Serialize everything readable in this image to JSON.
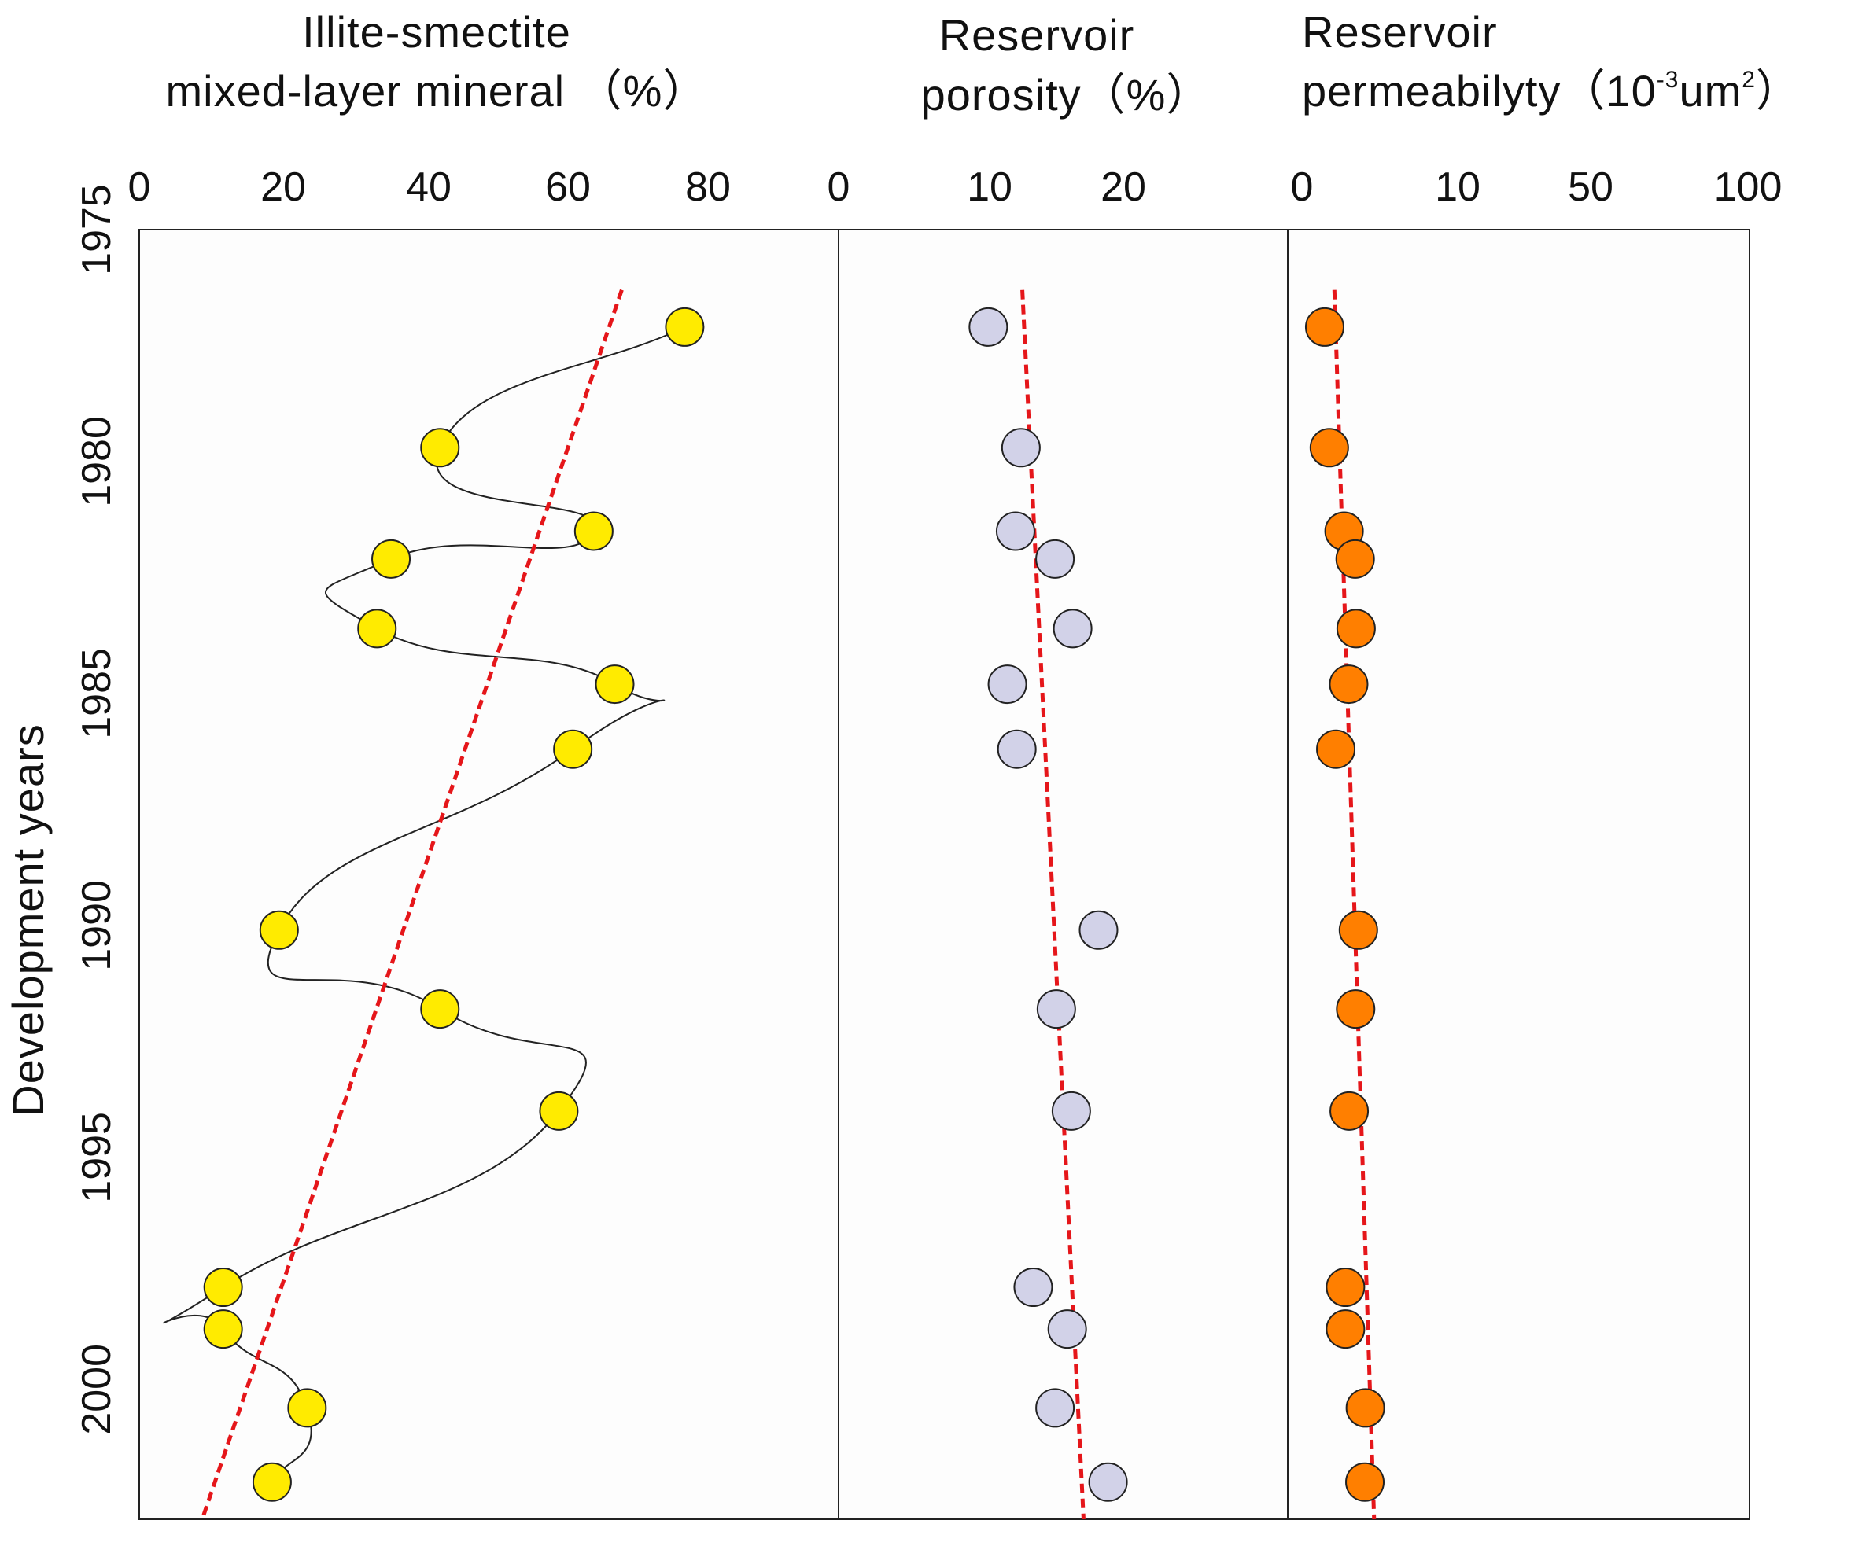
{
  "chart_data": {
    "type": "scatter",
    "y_axis": {
      "label": "Development years",
      "tick_labels": [
        "1975",
        "1980",
        "1985",
        "1990",
        "1995",
        "2000"
      ],
      "range": [
        1975,
        2002.8
      ],
      "inverted": true
    },
    "panels": [
      {
        "id": "illite",
        "title_lines": [
          "Illite-smectite",
          "mixed-layer mineral （%）"
        ],
        "x_tick_labels": [
          "0",
          "20",
          "40",
          "60",
          "80"
        ],
        "x_range": [
          0,
          100
        ],
        "marker_color": "#ffeb00",
        "trend_color": "#e5161a",
        "connect_points": true,
        "points": [
          {
            "year": 1977.1,
            "value": 78
          },
          {
            "year": 1979.7,
            "value": 43
          },
          {
            "year": 1981.5,
            "value": 65
          },
          {
            "year": 1982.1,
            "value": 36
          },
          {
            "year": 1983.6,
            "value": 34
          },
          {
            "year": 1984.8,
            "value": 68
          },
          {
            "year": 1986.2,
            "value": 62
          },
          {
            "year": 1990.1,
            "value": 20
          },
          {
            "year": 1991.8,
            "value": 43
          },
          {
            "year": 1994.0,
            "value": 60
          },
          {
            "year": 1997.8,
            "value": 12
          },
          {
            "year": 1998.7,
            "value": 12
          },
          {
            "year": 2000.4,
            "value": 24
          },
          {
            "year": 2002.0,
            "value": 19
          }
        ],
        "trend": [
          {
            "year": 1976.3,
            "value": 69
          },
          {
            "year": 2002.8,
            "value": 9
          }
        ]
      },
      {
        "id": "porosity",
        "title_lines": [
          "Reservoir",
          "porosity（%）"
        ],
        "x_tick_labels": [
          "0",
          "10",
          "20"
        ],
        "x_range": [
          0,
          33
        ],
        "marker_color": "#d2d2e8",
        "trend_color": "#e5161a",
        "connect_points": false,
        "points": [
          {
            "year": 1977.1,
            "value": 11
          },
          {
            "year": 1979.7,
            "value": 13.4
          },
          {
            "year": 1981.5,
            "value": 13
          },
          {
            "year": 1982.1,
            "value": 15.9
          },
          {
            "year": 1983.6,
            "value": 17.2
          },
          {
            "year": 1984.8,
            "value": 12.4
          },
          {
            "year": 1986.2,
            "value": 13.1
          },
          {
            "year": 1990.1,
            "value": 19.1
          },
          {
            "year": 1991.8,
            "value": 16
          },
          {
            "year": 1994.0,
            "value": 17.1
          },
          {
            "year": 1997.8,
            "value": 14.3
          },
          {
            "year": 1998.7,
            "value": 16.8
          },
          {
            "year": 2000.4,
            "value": 15.9
          },
          {
            "year": 2002.0,
            "value": 19.8
          }
        ],
        "trend": [
          {
            "year": 1976.3,
            "value": 13.5
          },
          {
            "year": 2002.8,
            "value": 18
          }
        ]
      },
      {
        "id": "permeability",
        "title_lines": [
          "Reservoir",
          "permeabilyty（10",
          "-3",
          "um",
          "2",
          "）"
        ],
        "x_tick_labels": [
          "0",
          "10",
          "50",
          "100"
        ],
        "x_range": [
          0,
          100
        ],
        "marker_color": "#ff7f00",
        "trend_color": "#e5161a",
        "connect_points": false,
        "points": [
          {
            "year": 1977.1,
            "value": 8
          },
          {
            "year": 1979.7,
            "value": 9
          },
          {
            "year": 1981.5,
            "value": 12.2
          },
          {
            "year": 1982.1,
            "value": 14.6
          },
          {
            "year": 1983.6,
            "value": 14.8
          },
          {
            "year": 1984.8,
            "value": 13.2
          },
          {
            "year": 1986.2,
            "value": 10.4
          },
          {
            "year": 1990.1,
            "value": 15.3
          },
          {
            "year": 1991.8,
            "value": 14.7
          },
          {
            "year": 1994.0,
            "value": 13.3
          },
          {
            "year": 1997.8,
            "value": 12.5
          },
          {
            "year": 1998.7,
            "value": 12.5
          },
          {
            "year": 2000.4,
            "value": 16.8
          },
          {
            "year": 2002.0,
            "value": 16.7
          }
        ],
        "trend": [
          {
            "year": 1976.3,
            "value": 10.1
          },
          {
            "year": 2002.8,
            "value": 18.7
          }
        ]
      }
    ]
  }
}
